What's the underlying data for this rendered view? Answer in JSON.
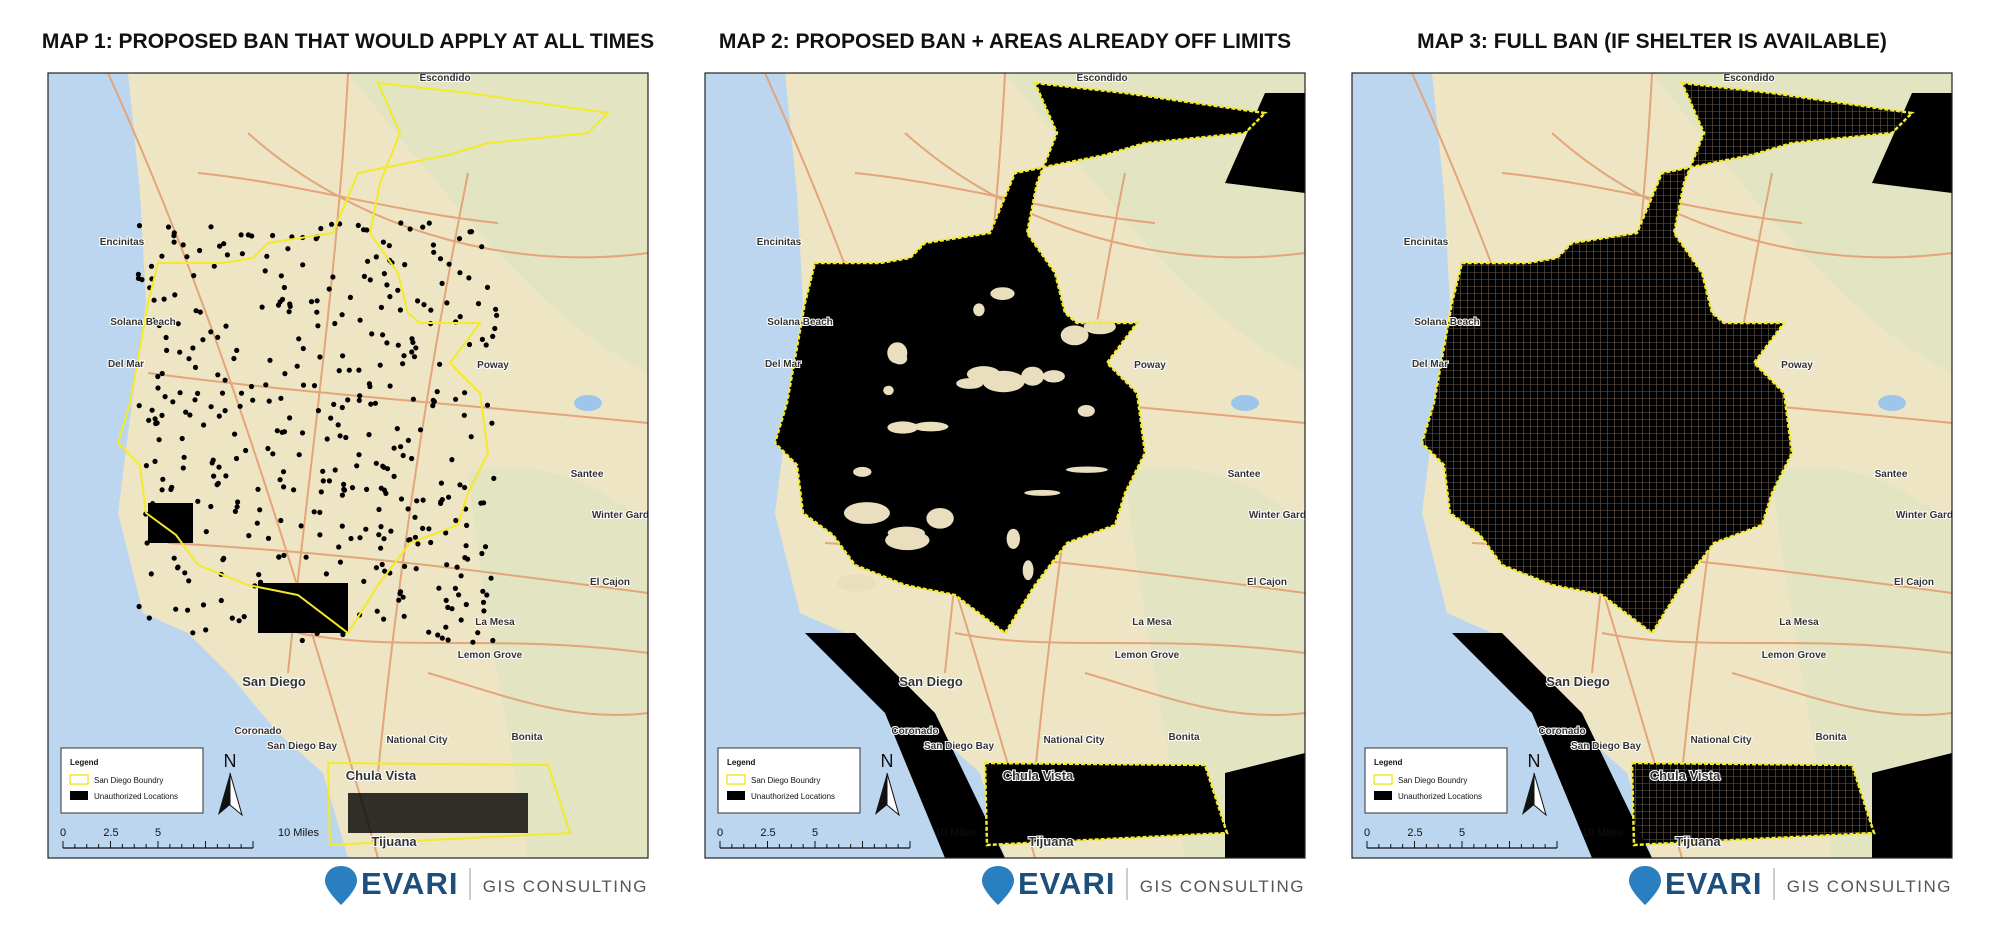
{
  "maps": [
    {
      "title": "MAP 1: PROPOSED BAN THAT WOULD APPLY AT ALL TIMES"
    },
    {
      "title": "MAP 2: PROPOSED BAN + AREAS ALREADY OFF LIMITS"
    },
    {
      "title": "MAP 3: FULL BAN (IF SHELTER IS AVAILABLE)"
    }
  ],
  "places": [
    {
      "label": "Escondido"
    },
    {
      "label": "Encinitas"
    },
    {
      "label": "Solana Beach"
    },
    {
      "label": "Del Mar"
    },
    {
      "label": "Poway"
    },
    {
      "label": "Santee"
    },
    {
      "label": "Winter Gardens"
    },
    {
      "label": "El Cajon"
    },
    {
      "label": "La Mesa"
    },
    {
      "label": "Lemon Grove"
    },
    {
      "label": "San Diego"
    },
    {
      "label": "Coronado"
    },
    {
      "label": "San Diego Bay"
    },
    {
      "label": "National City"
    },
    {
      "label": "Bonita"
    },
    {
      "label": "Chula Vista"
    },
    {
      "label": "Tijuana"
    }
  ],
  "legend": {
    "title": "Legend",
    "items": [
      "San Diego Boundry",
      "Unauthorized Locations"
    ]
  },
  "scale_bar": {
    "labels": [
      "0",
      "2.5",
      "5",
      "10 Miles"
    ]
  },
  "north": "N",
  "brand": {
    "name": "EVARI",
    "tagline": "GIS CONSULTING"
  }
}
